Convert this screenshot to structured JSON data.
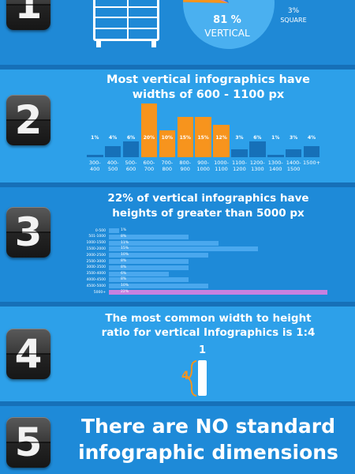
{
  "section1": {
    "number": "1",
    "vertical_pct": "81 %",
    "vertical_word": "VERTICAL",
    "square_pct": "3%",
    "square_word": "SQUARE"
  },
  "section2": {
    "number": "2",
    "heading_line1": "Most vertical infographics have",
    "heading_line2": "widths of 600 - 1100 px"
  },
  "section3": {
    "number": "3",
    "heading_line1": "22% of vertical infographics have",
    "heading_line2": "heights of greater than 5000 px"
  },
  "section4": {
    "number": "4",
    "heading_line1": "The most common width to height",
    "heading_line2": "ratio for vertical Infographics is 1:4",
    "ratio_width": "1",
    "ratio_height": "4"
  },
  "section5": {
    "number": "5",
    "heading_line1": "There are NO standard",
    "heading_line2": "infographic dimensions"
  },
  "colors": {
    "orange": "#f7941d",
    "dark_blue": "#1670b8",
    "light_blue": "#4aa8ee",
    "purple": "#c781e0"
  },
  "chart_data": [
    {
      "type": "pie",
      "labels": [
        "VERTICAL",
        "SQUARE"
      ],
      "values": [
        81,
        3
      ]
    },
    {
      "type": "bar",
      "categories": [
        "300-400",
        "400-500",
        "500-600",
        "600-700",
        "700-800",
        "800-900",
        "900-1000",
        "1000-1100",
        "1100-1200",
        "1200-1300",
        "1300-1400",
        "1400-1500",
        "1500+"
      ],
      "tick_top": [
        "300-",
        "400-",
        "500-",
        "600-",
        "700-",
        "800-",
        "900-",
        "1000-",
        "1100-",
        "1200-",
        "1300-",
        "1400-",
        "1500+"
      ],
      "tick_bottom": [
        "400",
        "500",
        "600",
        "700",
        "800",
        "900",
        "1000",
        "1100",
        "1200",
        "1300",
        "1400",
        "1500",
        ""
      ],
      "values": [
        1,
        4,
        6,
        20,
        10,
        15,
        15,
        12,
        3,
        6,
        1,
        3,
        4
      ],
      "labels": [
        "1%",
        "4%",
        "6%",
        "20%",
        "10%",
        "15%",
        "15%",
        "12%",
        "3%",
        "6%",
        "1%",
        "3%",
        "4%"
      ],
      "highlighted": [
        false,
        false,
        false,
        true,
        true,
        true,
        true,
        true,
        false,
        false,
        false,
        false,
        false
      ]
    },
    {
      "type": "bar",
      "orientation": "horizontal",
      "categories": [
        "0-500",
        "501-1000",
        "1000-1500",
        "1500-2000",
        "2000-2500",
        "2500-3000",
        "3000-3500",
        "3500-4000",
        "4000-4500",
        "4500-5000",
        "5000+"
      ],
      "values": [
        1,
        8,
        11,
        15,
        10,
        8,
        8,
        6,
        8,
        10,
        22
      ],
      "labels": [
        "1%",
        "8%",
        "11%",
        "15%",
        "10%",
        "8%",
        "8%",
        "6%",
        "8%",
        "10%",
        "22%"
      ],
      "highlighted": [
        false,
        false,
        false,
        false,
        false,
        false,
        false,
        false,
        false,
        false,
        true
      ]
    }
  ]
}
